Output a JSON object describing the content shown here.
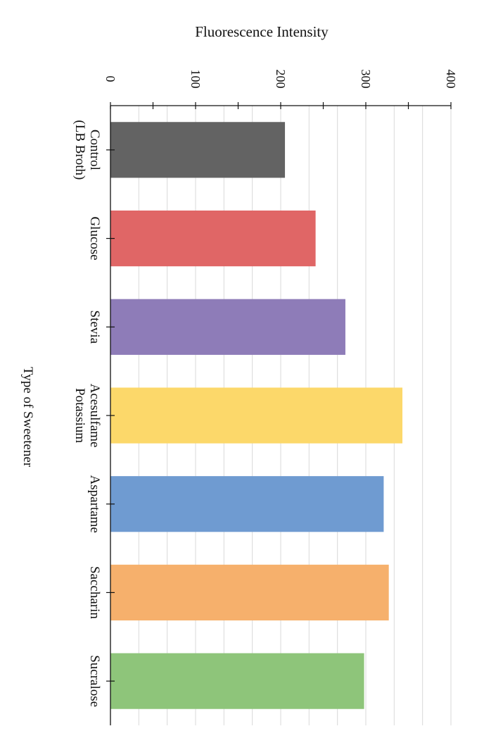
{
  "chart_data": {
    "type": "bar",
    "orientation": "horizontal",
    "title": "",
    "xlabel": "Type of Sweetener",
    "ylabel": "Fluorescence Intensity",
    "ylim": [
      0,
      400
    ],
    "yticks": [
      "0",
      "100",
      "200",
      "300",
      "400"
    ],
    "grid": true,
    "categories": [
      [
        "Control",
        "(LB Broth)"
      ],
      [
        "Glucose"
      ],
      [
        "Stevia"
      ],
      [
        "Acesulfame",
        "Potassium"
      ],
      [
        "Aspartame"
      ],
      [
        "Saccharin"
      ],
      [
        "Sucralose"
      ]
    ],
    "values": [
      205,
      241,
      276,
      343,
      321,
      327,
      298
    ],
    "colors": [
      "#636363",
      "#e06666",
      "#8e7cb8",
      "#fcd86a",
      "#6f9bd1",
      "#f6b06c",
      "#8ec57a"
    ]
  }
}
